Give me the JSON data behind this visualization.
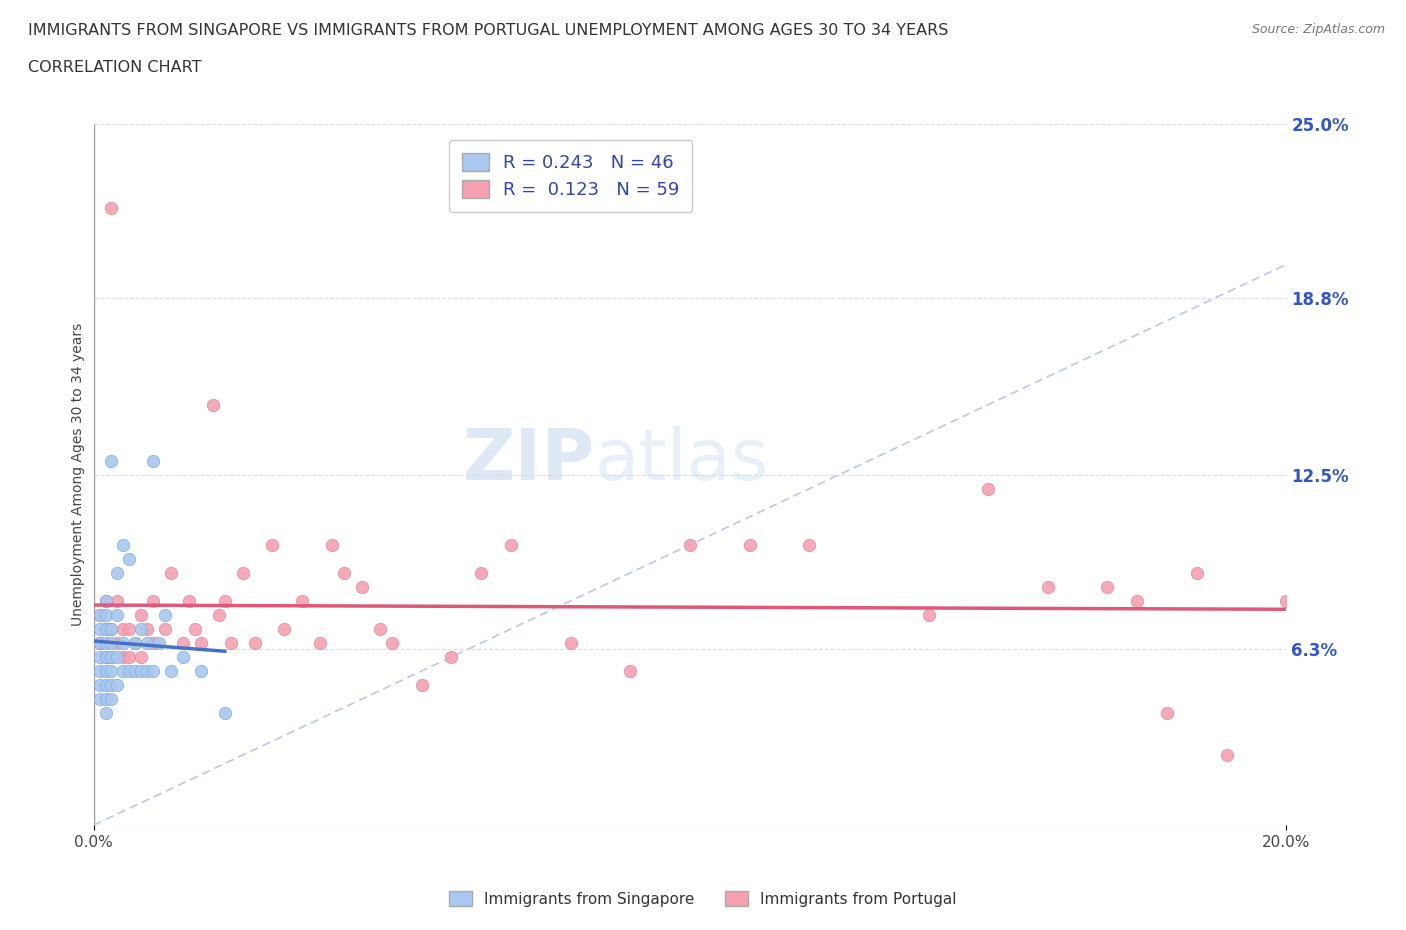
{
  "title_line1": "IMMIGRANTS FROM SINGAPORE VS IMMIGRANTS FROM PORTUGAL UNEMPLOYMENT AMONG AGES 30 TO 34 YEARS",
  "title_line2": "CORRELATION CHART",
  "source_text": "Source: ZipAtlas.com",
  "ylabel": "Unemployment Among Ages 30 to 34 years",
  "xlim": [
    0.0,
    0.2
  ],
  "ylim": [
    0.0,
    0.25
  ],
  "ytick_right_labels": [
    "6.3%",
    "12.5%",
    "18.8%",
    "25.0%"
  ],
  "ytick_right_values": [
    0.063,
    0.125,
    0.188,
    0.25
  ],
  "singapore_color": "#a8c8f0",
  "portugal_color": "#f5a0b0",
  "singapore_edge": "#7aaad8",
  "portugal_edge": "#e080a0",
  "sg_line_color": "#4472C4",
  "pt_line_color": "#E05878",
  "ref_line_color": "#aabbdd",
  "singapore_R": 0.243,
  "singapore_N": 46,
  "portugal_R": 0.123,
  "portugal_N": 59,
  "legend_label_sg": "Immigrants from Singapore",
  "legend_label_pt": "Immigrants from Portugal",
  "singapore_x": [
    0.001,
    0.001,
    0.001,
    0.001,
    0.001,
    0.001,
    0.001,
    0.002,
    0.002,
    0.002,
    0.002,
    0.002,
    0.002,
    0.002,
    0.002,
    0.002,
    0.003,
    0.003,
    0.003,
    0.003,
    0.003,
    0.003,
    0.003,
    0.004,
    0.004,
    0.004,
    0.004,
    0.005,
    0.005,
    0.005,
    0.006,
    0.006,
    0.007,
    0.007,
    0.008,
    0.008,
    0.009,
    0.009,
    0.01,
    0.01,
    0.011,
    0.012,
    0.013,
    0.015,
    0.018,
    0.022
  ],
  "singapore_y": [
    0.045,
    0.05,
    0.055,
    0.06,
    0.065,
    0.07,
    0.075,
    0.04,
    0.045,
    0.05,
    0.055,
    0.06,
    0.065,
    0.07,
    0.075,
    0.08,
    0.045,
    0.05,
    0.055,
    0.06,
    0.065,
    0.07,
    0.13,
    0.05,
    0.06,
    0.075,
    0.09,
    0.055,
    0.065,
    0.1,
    0.055,
    0.095,
    0.055,
    0.065,
    0.055,
    0.07,
    0.055,
    0.065,
    0.055,
    0.13,
    0.065,
    0.075,
    0.055,
    0.06,
    0.055,
    0.04
  ],
  "portugal_x": [
    0.001,
    0.001,
    0.002,
    0.002,
    0.002,
    0.003,
    0.003,
    0.003,
    0.004,
    0.004,
    0.005,
    0.005,
    0.006,
    0.006,
    0.007,
    0.008,
    0.008,
    0.009,
    0.01,
    0.01,
    0.012,
    0.013,
    0.015,
    0.016,
    0.017,
    0.018,
    0.02,
    0.021,
    0.022,
    0.023,
    0.025,
    0.027,
    0.03,
    0.032,
    0.035,
    0.038,
    0.04,
    0.042,
    0.045,
    0.048,
    0.05,
    0.055,
    0.06,
    0.065,
    0.07,
    0.08,
    0.09,
    0.1,
    0.11,
    0.12,
    0.14,
    0.15,
    0.16,
    0.17,
    0.175,
    0.18,
    0.185,
    0.19,
    0.2
  ],
  "portugal_y": [
    0.065,
    0.075,
    0.06,
    0.07,
    0.08,
    0.06,
    0.07,
    0.22,
    0.065,
    0.08,
    0.06,
    0.07,
    0.06,
    0.07,
    0.065,
    0.06,
    0.075,
    0.07,
    0.08,
    0.065,
    0.07,
    0.09,
    0.065,
    0.08,
    0.07,
    0.065,
    0.15,
    0.075,
    0.08,
    0.065,
    0.09,
    0.065,
    0.1,
    0.07,
    0.08,
    0.065,
    0.1,
    0.09,
    0.085,
    0.07,
    0.065,
    0.05,
    0.06,
    0.09,
    0.1,
    0.065,
    0.055,
    0.1,
    0.1,
    0.1,
    0.075,
    0.12,
    0.085,
    0.085,
    0.08,
    0.04,
    0.09,
    0.025,
    0.08
  ]
}
